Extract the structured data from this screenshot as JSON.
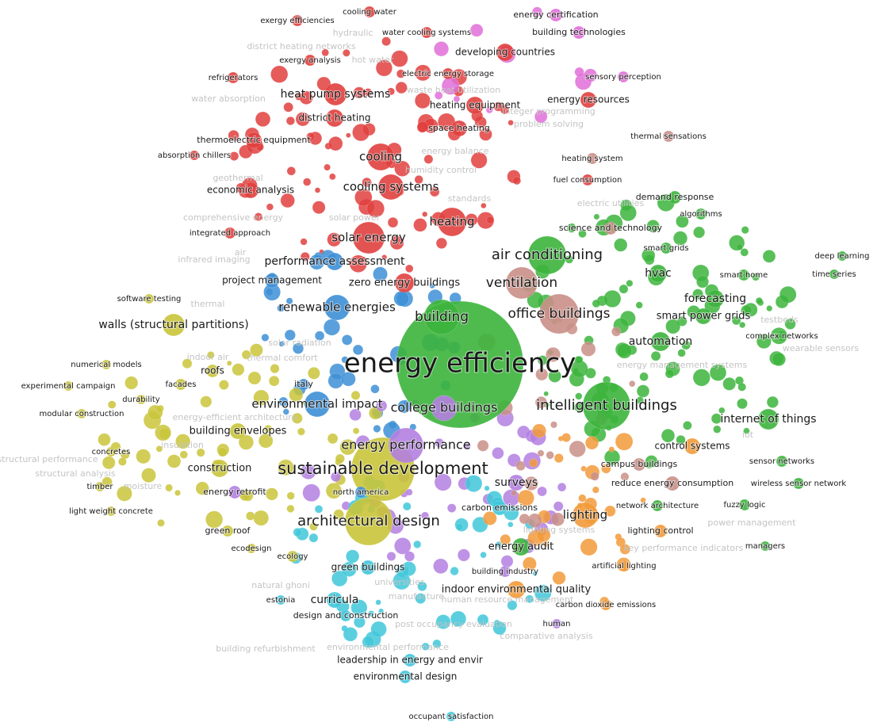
{
  "colors": {
    "red": "#e0403e",
    "green": "#3cb43c",
    "blue": "#3d8fd6",
    "yellow": "#c9c43a",
    "purple": "#b37fe0",
    "cyan": "#3fc7d9",
    "orange": "#f29a3a",
    "brown": "#c98f87",
    "pink": "#e06fd8",
    "label": "#1a1a1a",
    "faint": "#c4c4c4"
  },
  "nodes": [
    {
      "label": "energy efficiency",
      "cluster": "green",
      "value": 100
    },
    {
      "label": "intelligent buildings",
      "cluster": "green",
      "value": 24
    },
    {
      "label": "building",
      "cluster": "green",
      "value": 22
    },
    {
      "label": "office buildings",
      "cluster": "brown",
      "value": 20
    },
    {
      "label": "air conditioning",
      "cluster": "green",
      "value": 20
    },
    {
      "label": "ventilation",
      "cluster": "brown",
      "value": 16
    },
    {
      "label": "sustainable development",
      "cluster": "yellow",
      "value": 26
    },
    {
      "label": "architectural design",
      "cluster": "yellow",
      "value": 20
    },
    {
      "label": "energy performance",
      "cluster": "purple",
      "value": 16
    },
    {
      "label": "environmental impact",
      "cluster": "blue",
      "value": 12
    },
    {
      "label": "renewable energies",
      "cluster": "blue",
      "value": 12
    },
    {
      "label": "solar energy",
      "cluster": "red",
      "value": 14
    },
    {
      "label": "heating",
      "cluster": "red",
      "value": 14
    },
    {
      "label": "cooling",
      "cluster": "red",
      "value": 13
    },
    {
      "label": "cooling systems",
      "cluster": "red",
      "value": 12
    },
    {
      "label": "heat pump systems",
      "cluster": "red",
      "value": 11
    },
    {
      "label": "district heating",
      "cluster": "red",
      "value": 9
    },
    {
      "label": "thermoelectric equipment",
      "cluster": "red",
      "value": 8
    },
    {
      "label": "economic analysis",
      "cluster": "red",
      "value": 8
    },
    {
      "label": "heating equipment",
      "cluster": "red",
      "value": 9
    },
    {
      "label": "space heating",
      "cluster": "red",
      "value": 8
    },
    {
      "label": "energy resources",
      "cluster": "red",
      "value": 8
    },
    {
      "label": "developing countries",
      "cluster": "red",
      "value": 9
    },
    {
      "label": "building technologies",
      "cluster": "pink",
      "value": 7
    },
    {
      "label": "energy certification",
      "cluster": "pink",
      "value": 7
    },
    {
      "label": "exergy efficiencies",
      "cluster": "red",
      "value": 6
    },
    {
      "label": "cooling water",
      "cluster": "red",
      "value": 6
    },
    {
      "label": "water cooling systems",
      "cluster": "red",
      "value": 6
    },
    {
      "label": "exergy analysis",
      "cluster": "red",
      "value": 6
    },
    {
      "label": "electric energy storage",
      "cluster": "red",
      "value": 6
    },
    {
      "label": "refrigerators",
      "cluster": "red",
      "value": 6
    },
    {
      "label": "sensory perception",
      "cluster": "pink",
      "value": 6
    },
    {
      "label": "absorption chillers",
      "cluster": "red",
      "value": 5
    },
    {
      "label": "thermal sensations",
      "cluster": "brown",
      "value": 6
    },
    {
      "label": "heating system",
      "cluster": "brown",
      "value": 6
    },
    {
      "label": "fuel consumption",
      "cluster": "red",
      "value": 6
    },
    {
      "label": "demand response",
      "cluster": "green",
      "value": 7
    },
    {
      "label": "algorithms",
      "cluster": "green",
      "value": 6
    },
    {
      "label": "science and technology",
      "cluster": "brown",
      "value": 7
    },
    {
      "label": "smart grids",
      "cluster": "green",
      "value": 6
    },
    {
      "label": "deep learning",
      "cluster": "green",
      "value": 5
    },
    {
      "label": "time series",
      "cluster": "green",
      "value": 5
    },
    {
      "label": "hvac",
      "cluster": "green",
      "value": 10
    },
    {
      "label": "smart home",
      "cluster": "green",
      "value": 6
    },
    {
      "label": "forecasting",
      "cluster": "green",
      "value": 10
    },
    {
      "label": "smart power grids",
      "cluster": "green",
      "value": 9
    },
    {
      "label": "automation",
      "cluster": "green",
      "value": 11
    },
    {
      "label": "complex networks",
      "cluster": "green",
      "value": 6
    },
    {
      "label": "internet of things",
      "cluster": "green",
      "value": 12
    },
    {
      "label": "control systems",
      "cluster": "orange",
      "value": 9
    },
    {
      "label": "campus buildings",
      "cluster": "brown",
      "value": 7
    },
    {
      "label": "sensor networks",
      "cluster": "green",
      "value": 6
    },
    {
      "label": "reduce energy consumption",
      "cluster": "brown",
      "value": 8
    },
    {
      "label": "wireless sensor network",
      "cluster": "green",
      "value": 6
    },
    {
      "label": "network architecture",
      "cluster": "green",
      "value": 6
    },
    {
      "label": "fuzzy logic",
      "cluster": "green",
      "value": 6
    },
    {
      "label": "lighting",
      "cluster": "orange",
      "value": 14
    },
    {
      "label": "lighting control",
      "cluster": "orange",
      "value": 7
    },
    {
      "label": "managers",
      "cluster": "green",
      "value": 5
    },
    {
      "label": "artificial lighting",
      "cluster": "orange",
      "value": 6
    },
    {
      "label": "carbon dioxide emissions",
      "cluster": "orange",
      "value": 6
    },
    {
      "label": "energy audit",
      "cluster": "green",
      "value": 10
    },
    {
      "label": "carbon emissions",
      "cluster": "cyan",
      "value": 8
    },
    {
      "label": "surveys",
      "cluster": "purple",
      "value": 9
    },
    {
      "label": "building industry",
      "cluster": "purple",
      "value": 6
    },
    {
      "label": "indoor environmental quality",
      "cluster": "orange",
      "value": 10
    },
    {
      "label": "green buildings",
      "cluster": "cyan",
      "value": 8
    },
    {
      "label": "curricula",
      "cluster": "cyan",
      "value": 9
    },
    {
      "label": "estonia",
      "cluster": "cyan",
      "value": 5
    },
    {
      "label": "design and construction",
      "cluster": "cyan",
      "value": 6
    },
    {
      "label": "human",
      "cluster": "purple",
      "value": 5
    },
    {
      "label": "leadership in energy and envir",
      "cluster": "cyan",
      "value": 7
    },
    {
      "label": "environmental design",
      "cluster": "cyan",
      "value": 7
    },
    {
      "label": "occupant satisfaction",
      "cluster": "cyan",
      "value": 5
    },
    {
      "label": "ecology",
      "cluster": "yellow",
      "value": 6
    },
    {
      "label": "ecodesign",
      "cluster": "yellow",
      "value": 5
    },
    {
      "label": "green roof",
      "cluster": "yellow",
      "value": 6
    },
    {
      "label": "energy retrofit",
      "cluster": "purple",
      "value": 7
    },
    {
      "label": "north america",
      "cluster": "blue",
      "value": 6
    },
    {
      "label": "construction",
      "cluster": "yellow",
      "value": 10
    },
    {
      "label": "building envelopes",
      "cluster": "yellow",
      "value": 9
    },
    {
      "label": "roofs",
      "cluster": "yellow",
      "value": 7
    },
    {
      "label": "italy",
      "cluster": "blue",
      "value": 6
    },
    {
      "label": "walls (structural partitions)",
      "cluster": "yellow",
      "value": 12
    },
    {
      "label": "software testing",
      "cluster": "yellow",
      "value": 5
    },
    {
      "label": "project management",
      "cluster": "blue",
      "value": 8
    },
    {
      "label": "performance assessment",
      "cluster": "blue",
      "value": 10
    },
    {
      "label": "zero energy buildings",
      "cluster": "red",
      "value": 11
    },
    {
      "label": "integrated approach",
      "cluster": "red",
      "value": 6
    },
    {
      "label": "numerical models",
      "cluster": "yellow",
      "value": 5
    },
    {
      "label": "experimental campaign",
      "cluster": "yellow",
      "value": 5
    },
    {
      "label": "facades",
      "cluster": "yellow",
      "value": 6
    },
    {
      "label": "durability",
      "cluster": "yellow",
      "value": 5
    },
    {
      "label": "modular construction",
      "cluster": "yellow",
      "value": 5
    },
    {
      "label": "concretes",
      "cluster": "yellow",
      "value": 5
    },
    {
      "label": "timber",
      "cluster": "yellow",
      "value": 5
    },
    {
      "label": "light weight concrete",
      "cluster": "yellow",
      "value": 5
    },
    {
      "label": "college buildings",
      "cluster": "purple",
      "value": 14
    }
  ]
}
